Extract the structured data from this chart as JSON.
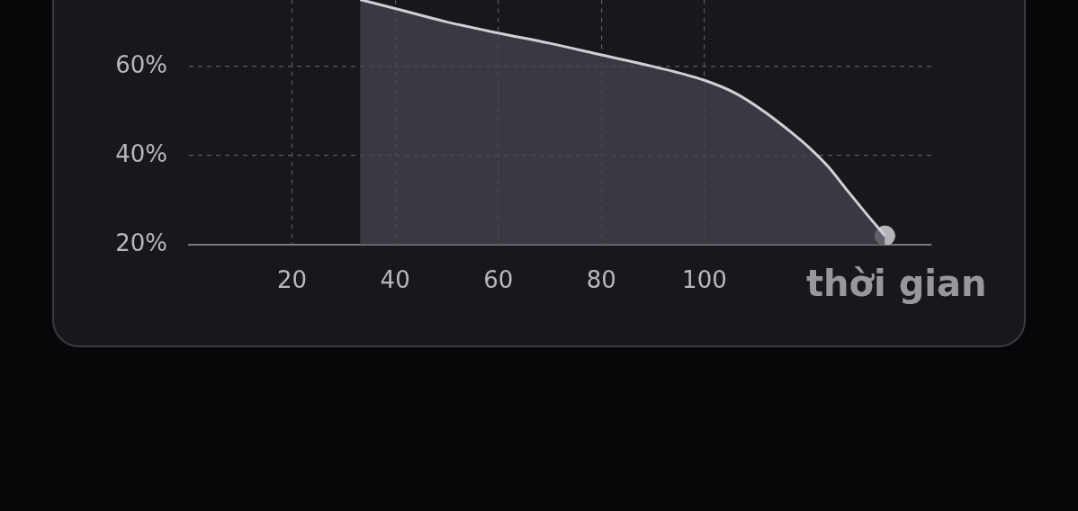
{
  "chart_data": {
    "type": "area",
    "xlabel": "thời gian",
    "xlim": [
      0,
      144
    ],
    "ylim": [
      20,
      75
    ],
    "xticks": [
      20,
      40,
      60,
      80,
      100
    ],
    "yticks": [
      {
        "value": 20,
        "label": "20%"
      },
      {
        "value": 40,
        "label": "40%"
      },
      {
        "value": 60,
        "label": "60%"
      }
    ],
    "grid": true,
    "line_style": "solid",
    "series": [
      {
        "color": "#cfcfd6",
        "x": [
          33.2,
          40,
          50,
          60,
          70,
          80,
          90,
          100,
          106,
          111.7,
          116,
          120.4,
          124,
          127.4,
          131,
          135
        ],
        "values": [
          75,
          73,
          70,
          67.5,
          65.2,
          62.6,
          60,
          56.9,
          54,
          49.8,
          46,
          41.7,
          37.5,
          32.6,
          27.5,
          22
        ]
      },
      {
        "type": "scatter",
        "color": "#b4b4ba",
        "x": [
          135
        ],
        "values": [
          22
        ]
      }
    ]
  }
}
